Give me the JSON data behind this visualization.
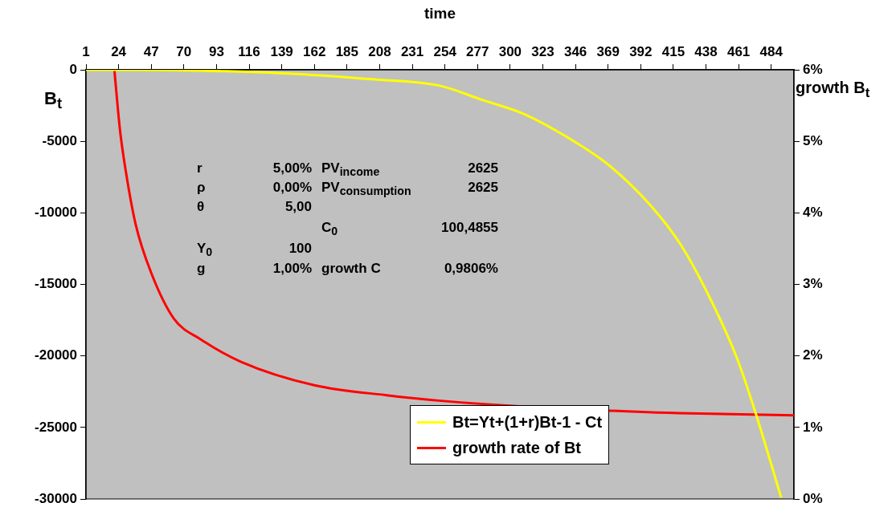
{
  "chart_data": {
    "type": "line",
    "xlabel": "time",
    "ylabel": "B$_{t}$",
    "y2label": "growth B$_{t}$",
    "xlim": [
      1,
      500
    ],
    "xticks": [
      1,
      24,
      47,
      70,
      93,
      116,
      139,
      162,
      185,
      208,
      231,
      254,
      277,
      300,
      323,
      346,
      369,
      392,
      415,
      438,
      461,
      484
    ],
    "ylim": [
      -30000,
      0
    ],
    "yticks": [
      -30000,
      -25000,
      -20000,
      -15000,
      -10000,
      -5000,
      0
    ],
    "y2lim": [
      0,
      6
    ],
    "y2ticks": [
      {
        "value": 0,
        "label": "0%"
      },
      {
        "value": 1,
        "label": "1%"
      },
      {
        "value": 2,
        "label": "2%"
      },
      {
        "value": 3,
        "label": "3%"
      },
      {
        "value": 4,
        "label": "4%"
      },
      {
        "value": 5,
        "label": "5%"
      },
      {
        "value": 6,
        "label": "6%"
      }
    ],
    "series": [
      {
        "name": "Bt=Yt+(1+r)Bt-1 - Ct",
        "color": "#ffff00",
        "x": [
          1,
          50,
          100,
          150,
          200,
          250,
          280,
          310,
          340,
          370,
          400,
          420,
          440,
          460,
          473,
          491
        ],
        "values": [
          0,
          -20,
          -100,
          -300,
          -650,
          -1100,
          -2100,
          -3100,
          -4700,
          -6700,
          -9600,
          -12200,
          -15800,
          -20200,
          -24000,
          -29900
        ]
      },
      {
        "name": "growth rate of Bt",
        "color": "#ff0000",
        "axis": "y2",
        "x": [
          21,
          25,
          29,
          36,
          47,
          63,
          82,
          110,
          162,
          213,
          265,
          400,
          419,
          471,
          500
        ],
        "values": [
          6.0,
          5.15,
          4.59,
          3.84,
          3.16,
          2.52,
          2.23,
          1.92,
          1.59,
          1.45,
          1.35,
          1.21,
          1.2,
          1.18,
          1.17
        ]
      }
    ],
    "marker": "none",
    "line_style": "solid",
    "grid": false,
    "legend": "bottom right",
    "annotations": [
      "r",
      "5,00%",
      "PV$_{income}$",
      "2625",
      "ρ",
      "0,00%",
      "PV$_{consumption}$",
      "2625",
      "θ",
      "5,00",
      "C$_{0}$",
      "100,4855",
      "Y$_{0}$",
      "100",
      "g",
      "1,00%",
      "growth C",
      "0,9806%"
    ]
  }
}
